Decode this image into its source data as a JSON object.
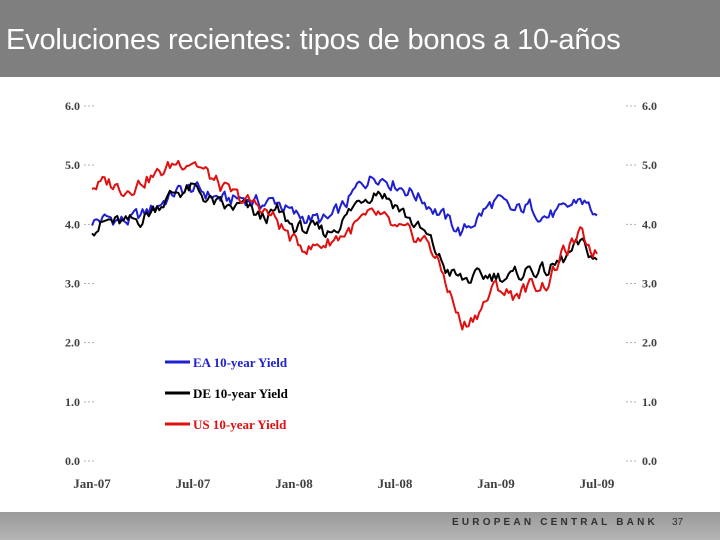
{
  "slide": {
    "title": "Evoluciones recientes: tipos de bonos a 10-años",
    "footer": "EUROPEAN CENTRAL BANK",
    "page_number": "37",
    "header_color": "#7f7f7f"
  },
  "chart_data": {
    "type": "line",
    "title": "Evoluciones recientes: tipos de bonos a 10-años",
    "xlabel": "",
    "ylabel": "",
    "ylim": [
      0,
      6
    ],
    "yticks": [
      "0.0",
      "1.0",
      "2.0",
      "3.0",
      "4.0",
      "5.0",
      "6.0"
    ],
    "xticks": [
      "Jan-07",
      "Jul-07",
      "Jan-08",
      "Jul-08",
      "Jan-09",
      "Jul-09"
    ],
    "x_unit": "months since Jan-07",
    "x": [
      0,
      1,
      2,
      3,
      4,
      5,
      6,
      7,
      8,
      9,
      10,
      11,
      12,
      13,
      14,
      15,
      16,
      17,
      18,
      19,
      20,
      21,
      22,
      23,
      24,
      25,
      26,
      27,
      28,
      29,
      30
    ],
    "legend_position": "lower-left",
    "grid": false,
    "series": [
      {
        "name": "EA 10-year Yield",
        "color": "#1f1fd0",
        "values": [
          4.05,
          4.1,
          4.05,
          4.15,
          4.35,
          4.55,
          4.6,
          4.5,
          4.4,
          4.45,
          4.35,
          4.4,
          4.15,
          4.1,
          4.05,
          4.3,
          4.7,
          4.85,
          4.7,
          4.55,
          4.35,
          4.1,
          3.85,
          4.15,
          4.4,
          4.2,
          4.3,
          4.15,
          4.2,
          4.45,
          4.15
        ]
      },
      {
        "name": "DE 10-year Yield",
        "color": "#000000",
        "values": [
          3.95,
          4.05,
          4.0,
          4.1,
          4.35,
          4.55,
          4.6,
          4.4,
          4.25,
          4.3,
          4.1,
          4.2,
          3.95,
          3.9,
          3.85,
          4.1,
          4.45,
          4.6,
          4.35,
          4.05,
          3.75,
          3.25,
          3.05,
          3.1,
          3.15,
          3.1,
          3.25,
          3.2,
          3.4,
          3.65,
          3.4
        ]
      },
      {
        "name": "US 10-year Yield",
        "color": "#e01010",
        "values": [
          4.65,
          4.7,
          4.6,
          4.75,
          4.85,
          5.05,
          5.1,
          4.8,
          4.55,
          4.4,
          4.3,
          4.05,
          3.7,
          3.6,
          3.7,
          3.85,
          4.05,
          4.15,
          3.9,
          3.8,
          3.7,
          3.05,
          2.25,
          2.55,
          2.95,
          2.8,
          2.95,
          3.0,
          3.5,
          3.8,
          3.5
        ]
      }
    ]
  }
}
